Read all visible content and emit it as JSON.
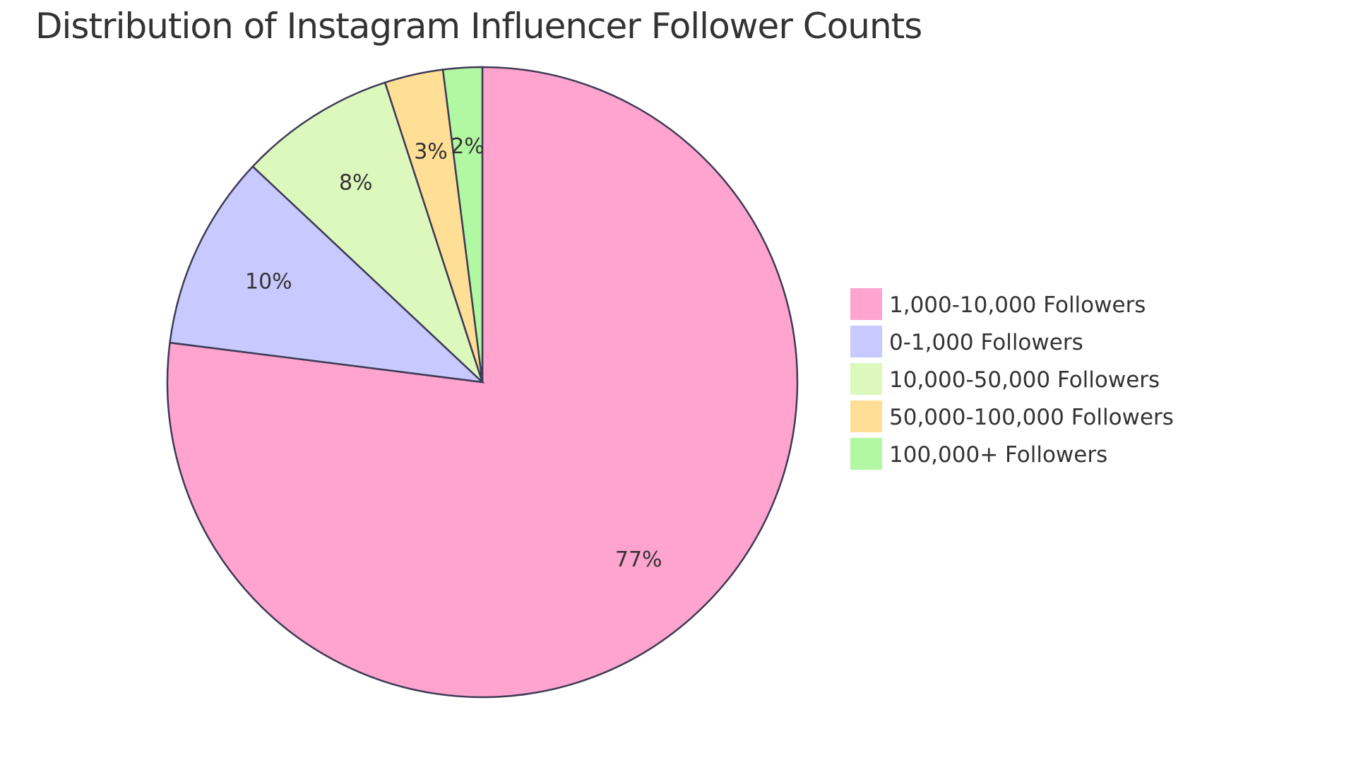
{
  "chart_data": {
    "type": "pie",
    "title": "Distribution of Instagram Influencer Follower Counts",
    "categories": [
      "1,000-10,000 Followers",
      "0-1,000 Followers",
      "10,000-50,000 Followers",
      "50,000-100,000 Followers",
      "100,000+ Followers"
    ],
    "values": [
      77,
      10,
      8,
      3,
      2
    ],
    "labels": [
      "77%",
      "10%",
      "8%",
      "3%",
      "2%"
    ],
    "colors": [
      "#ffa3cf",
      "#c8caff",
      "#dcf8bd",
      "#ffde95",
      "#b2f7a2"
    ],
    "stroke_color": "#3d3b55",
    "legend_position": "right"
  }
}
